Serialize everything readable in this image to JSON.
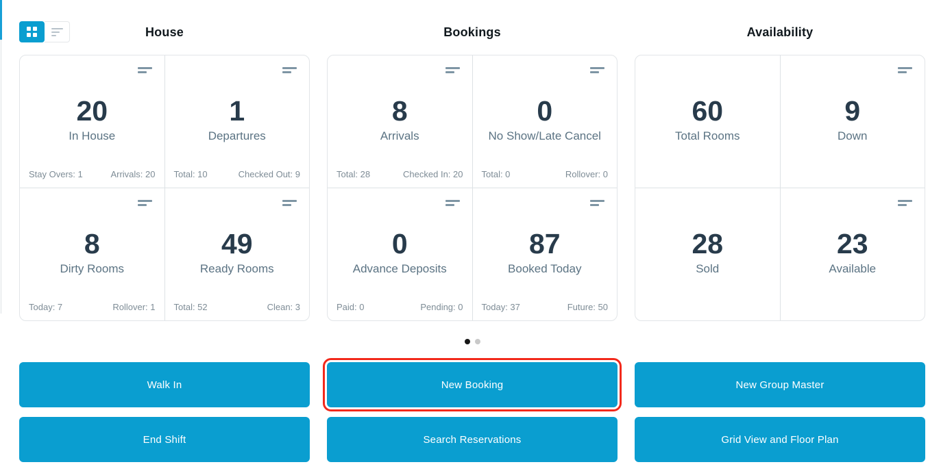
{
  "view_toggle": {
    "grid_button": "grid-view",
    "list_button": "list-view",
    "active": "grid-view"
  },
  "sections": [
    {
      "title": "House",
      "cards": [
        {
          "value": "20",
          "label": "In House",
          "footer_left": "Stay Overs: 1",
          "footer_right": "Arrivals: 20",
          "has_icon": true
        },
        {
          "value": "1",
          "label": "Departures",
          "footer_left": "Total: 10",
          "footer_right": "Checked Out: 9",
          "has_icon": true
        },
        {
          "value": "8",
          "label": "Dirty Rooms",
          "footer_left": "Today: 7",
          "footer_right": "Rollover: 1",
          "has_icon": true
        },
        {
          "value": "49",
          "label": "Ready Rooms",
          "footer_left": "Total: 52",
          "footer_right": "Clean: 3",
          "has_icon": true
        }
      ]
    },
    {
      "title": "Bookings",
      "cards": [
        {
          "value": "8",
          "label": "Arrivals",
          "footer_left": "Total: 28",
          "footer_right": "Checked In: 20",
          "has_icon": true
        },
        {
          "value": "0",
          "label": "No Show/Late Cancel",
          "footer_left": "Total: 0",
          "footer_right": "Rollover: 0",
          "has_icon": true
        },
        {
          "value": "0",
          "label": "Advance Deposits",
          "footer_left": "Paid: 0",
          "footer_right": "Pending: 0",
          "has_icon": true
        },
        {
          "value": "87",
          "label": "Booked Today",
          "footer_left": "Today: 37",
          "footer_right": "Future: 50",
          "has_icon": true
        }
      ]
    },
    {
      "title": "Availability",
      "cards": [
        {
          "value": "60",
          "label": "Total Rooms",
          "has_icon": false
        },
        {
          "value": "9",
          "label": "Down",
          "has_icon": true
        },
        {
          "value": "28",
          "label": "Sold",
          "has_icon": false
        },
        {
          "value": "23",
          "label": "Available",
          "has_icon": true
        }
      ]
    }
  ],
  "carousel": {
    "total_dots": 2,
    "active_index": 0
  },
  "actions": [
    {
      "label": "Walk In",
      "highlighted": false
    },
    {
      "label": "New Booking",
      "highlighted": true
    },
    {
      "label": "New Group Master",
      "highlighted": false
    },
    {
      "label": "End Shift",
      "highlighted": false
    },
    {
      "label": "Search Reservations",
      "highlighted": false
    },
    {
      "label": "Grid View and Floor Plan",
      "highlighted": false
    }
  ],
  "colors": {
    "accent_blue": "#0a9ed0",
    "highlight_red": "#f2291b",
    "number_dark": "#283b4b",
    "label_slate": "#5b7383",
    "footer_gray": "#7e8c96"
  }
}
